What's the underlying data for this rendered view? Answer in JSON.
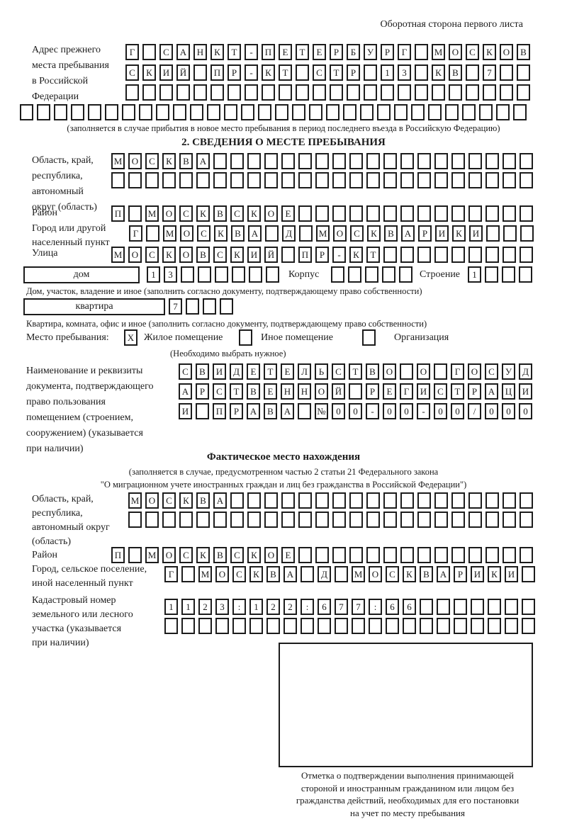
{
  "page": {
    "side_note": "Оборотная сторона первого листа"
  },
  "prev_address": {
    "label": [
      "Адрес прежнего",
      "места пребывания",
      "в Российской",
      "Федерации"
    ],
    "row1": "Г_САНКТ-ПЕТЕРБУРГ_МОСКОВ",
    "row2": "СКИЙ_ПР-КТ_СТР_13_КВ_7__",
    "row3": "________________________",
    "row4": "______________________________",
    "note": "(заполняется в случае прибытия в новое место пребывания в период последнего въезда в Российскую Федерацию)"
  },
  "section2": {
    "title": "2. СВЕДЕНИЯ О МЕСТЕ ПРЕБЫВАНИЯ",
    "region": {
      "label": [
        "Область, край,",
        "республика,",
        "автономный",
        "округ (область)"
      ],
      "row1": "МОСКВА___________________",
      "row2": "_________________________"
    },
    "district": {
      "label": "Район",
      "row": "П_МОСКВСКОЕ______________"
    },
    "city": {
      "label": [
        "Город или другой",
        "населенный пункт"
      ],
      "row": "Г_МОСКВА_Д_МОСКВАРИКИ___"
    },
    "street": {
      "label": "Улица",
      "row": "МОСКОВСКИЙ_ПР-КТ_________"
    },
    "house": {
      "box_label": "дом",
      "cells": "13______",
      "korpus_label": "Корпус",
      "korpus_cells": "_____",
      "stroenie_label": "Строение",
      "stroenie_cells": "1___",
      "note": "Дом, участок, владение и иное (заполнить согласно документу, подтверждающему право собственности)"
    },
    "apartment": {
      "box_label": "квартира",
      "cells": "7___",
      "note": "Квартира, комната, офис и иное (заполнить согласно документу, подтверждающему право собственности)"
    },
    "stay_type": {
      "label": "Место пребывания:",
      "checkbox1": "X",
      "option1": "Жилое помещение",
      "checkbox2": "_",
      "option2": "Иное помещение",
      "checkbox3": "_",
      "option3": "Организация",
      "note": "(Необходимо выбрать нужное)"
    },
    "document": {
      "label": [
        "Наименование и реквизиты",
        "документа, подтверждающего",
        "право пользования",
        "помещением (строением,",
        "сооружением) (указывается",
        "при наличии)"
      ],
      "row1": "СВИДЕТЕЛЬСТВО_О_ГОСУД",
      "row2": "АРСТВЕННОЙ_РЕГИСТРАЦИ",
      "row3": "И_ПРАВА_№00-00-00/000"
    }
  },
  "actual_location": {
    "title": "Фактическое место нахождения",
    "note1": "(заполняется в случае, предусмотренном частью 2 статьи 21 Федерального закона",
    "note2": "\"О миграционном учете иностранных граждан и лиц без гражданства в Российской Федерации\")",
    "region": {
      "label": [
        "Область, край,",
        "республика,",
        "автономный округ",
        "(область)"
      ],
      "row1": "МОСКВА__________________",
      "row2": "________________________"
    },
    "district": {
      "label": "Район",
      "row": "П_МОСКВСКОЕ______________"
    },
    "city": {
      "label": [
        "Город, сельское поселение,",
        "иной населенный пункт"
      ],
      "row": "Г_МОСКВА_Д_МОСКВАРИКИ_"
    },
    "cadastral": {
      "label": [
        "Кадастровый номер",
        "земельного или лесного",
        "участка (указывается",
        "при наличии)"
      ],
      "row1": "1123:122:677:66_______",
      "row2": "______________________"
    }
  },
  "confirmation": {
    "note": [
      "Отметка о подтверждении выполнения принимающей",
      "стороной и иностранным гражданином или лицом без",
      "гражданства действий, необходимых для его постановки",
      "на учет по месту пребывания"
    ]
  }
}
